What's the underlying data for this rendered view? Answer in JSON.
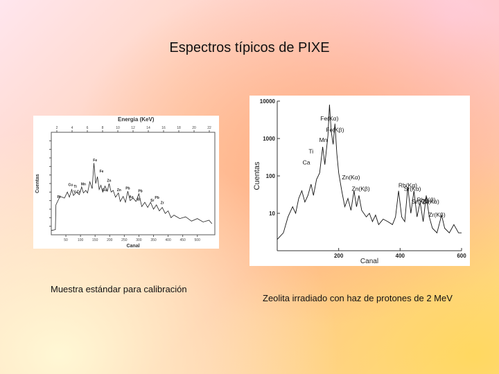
{
  "slide": {
    "title": "Espectros típicos de PIXE",
    "caption_left": "Muestra  estándar para calibración",
    "caption_right": "Zeolita irradiado con haz de protones de 2 MeV"
  },
  "chart_data": [
    {
      "type": "line",
      "title": "Energia  (KeV)",
      "xlabel": "Canal",
      "ylabel": "Cuentas",
      "top_ticks": [
        "2",
        "4",
        "6",
        "8",
        "10",
        "12",
        "14",
        "16",
        "18",
        "20",
        "22"
      ],
      "xticks": [
        "50",
        "100",
        "150",
        "200",
        "250",
        "300",
        "350",
        "400",
        "450",
        "500"
      ],
      "xlim": [
        0,
        560
      ],
      "ylim": [
        0,
        12
      ],
      "annotations": [
        {
          "label": "Fe",
          "x": 150,
          "y": 8.6
        },
        {
          "label": "Fe",
          "x": 172,
          "y": 7.3
        },
        {
          "label": "Cu",
          "x": 66,
          "y": 5.7
        },
        {
          "label": "Ti",
          "x": 82,
          "y": 5.5
        },
        {
          "label": "Mn",
          "x": 110,
          "y": 5.8
        },
        {
          "label": "V Cr",
          "x": 88,
          "y": 4.9
        },
        {
          "label": "Zn",
          "x": 198,
          "y": 6.2
        },
        {
          "label": "Cu",
          "x": 182,
          "y": 5.1
        },
        {
          "label": "Zn",
          "x": 232,
          "y": 5.1
        },
        {
          "label": "Pb",
          "x": 262,
          "y": 5.3
        },
        {
          "label": "Pb",
          "x": 305,
          "y": 5.0
        },
        {
          "label": "As",
          "x": 274,
          "y": 4.3
        },
        {
          "label": "Br",
          "x": 300,
          "y": 4.0
        },
        {
          "label": "Sr",
          "x": 346,
          "y": 3.9
        },
        {
          "label": "Pb",
          "x": 362,
          "y": 4.2
        },
        {
          "label": "Zr",
          "x": 380,
          "y": 3.6
        },
        {
          "label": "Pt",
          "x": 26,
          "y": 4.3
        }
      ],
      "series": [
        {
          "points": [
            [
              0,
              0.5
            ],
            [
              14,
              0.6
            ],
            [
              16,
              3.5
            ],
            [
              30,
              4.5
            ],
            [
              45,
              4.3
            ],
            [
              55,
              5.0
            ],
            [
              62,
              4.4
            ],
            [
              70,
              5.3
            ],
            [
              76,
              4.6
            ],
            [
              86,
              5.0
            ],
            [
              96,
              4.7
            ],
            [
              104,
              5.6
            ],
            [
              110,
              4.9
            ],
            [
              118,
              5.2
            ],
            [
              124,
              4.9
            ],
            [
              132,
              6.2
            ],
            [
              140,
              5.4
            ],
            [
              146,
              8.4
            ],
            [
              152,
              6.0
            ],
            [
              158,
              6.8
            ],
            [
              164,
              5.3
            ],
            [
              170,
              5.8
            ],
            [
              176,
              5.0
            ],
            [
              184,
              5.7
            ],
            [
              192,
              5.1
            ],
            [
              198,
              6.0
            ],
            [
              205,
              5.0
            ],
            [
              212,
              5.2
            ],
            [
              220,
              4.4
            ],
            [
              230,
              4.9
            ],
            [
              236,
              3.9
            ],
            [
              246,
              4.5
            ],
            [
              254,
              3.8
            ],
            [
              262,
              5.1
            ],
            [
              270,
              4.0
            ],
            [
              280,
              4.3
            ],
            [
              290,
              3.9
            ],
            [
              300,
              4.8
            ],
            [
              310,
              3.3
            ],
            [
              320,
              3.8
            ],
            [
              330,
              3.2
            ],
            [
              340,
              3.8
            ],
            [
              350,
              3.0
            ],
            [
              360,
              3.5
            ],
            [
              370,
              2.8
            ],
            [
              380,
              3.2
            ],
            [
              390,
              2.5
            ],
            [
              400,
              2.8
            ],
            [
              410,
              2.0
            ],
            [
              420,
              2.3
            ],
            [
              440,
              1.9
            ],
            [
              460,
              2.1
            ],
            [
              480,
              1.6
            ],
            [
              500,
              1.9
            ],
            [
              520,
              1.5
            ],
            [
              540,
              1.7
            ],
            [
              550,
              1.3
            ]
          ]
        }
      ]
    },
    {
      "type": "line",
      "xlabel": "Canal",
      "ylabel": "Cuentas",
      "xticks": [
        "200",
        "400",
        "600"
      ],
      "yticks": [
        "10",
        "100",
        "1000",
        "10000"
      ],
      "xlim": [
        0,
        600
      ],
      "ylim": [
        1,
        10000
      ],
      "log_y": true,
      "annotations": [
        {
          "label": "Fe(Kα)",
          "x": 170,
          "y": 3000
        },
        {
          "label": "Fe(Kβ)",
          "x": 188,
          "y": 1500
        },
        {
          "label": "Ti",
          "x": 110,
          "y": 400
        },
        {
          "label": "Ca",
          "x": 95,
          "y": 200
        },
        {
          "label": "Mn",
          "x": 150,
          "y": 800
        },
        {
          "label": "Rb(Kα)",
          "x": 425,
          "y": 50
        },
        {
          "label": "Rb(Kβ)",
          "x": 485,
          "y": 20
        },
        {
          "label": "Zn(Kα)",
          "x": 240,
          "y": 80
        },
        {
          "label": "Sr(Kα)",
          "x": 440,
          "y": 40
        },
        {
          "label": "Sr(Kβ)",
          "x": 465,
          "y": 18
        },
        {
          "label": "Zr(Kα)",
          "x": 500,
          "y": 18
        },
        {
          "label": "Zn(Kβ)",
          "x": 272,
          "y": 40
        },
        {
          "label": "Zr(Kβ)",
          "x": 520,
          "y": 8
        }
      ],
      "series": [
        {
          "points": [
            [
              0,
              2
            ],
            [
              20,
              3
            ],
            [
              35,
              8
            ],
            [
              50,
              15
            ],
            [
              60,
              10
            ],
            [
              70,
              25
            ],
            [
              80,
              40
            ],
            [
              90,
              20
            ],
            [
              100,
              30
            ],
            [
              110,
              60
            ],
            [
              118,
              30
            ],
            [
              128,
              80
            ],
            [
              138,
              120
            ],
            [
              148,
              600
            ],
            [
              155,
              200
            ],
            [
              165,
              1200
            ],
            [
              170,
              8000
            ],
            [
              176,
              1500
            ],
            [
              182,
              700
            ],
            [
              188,
              2500
            ],
            [
              194,
              400
            ],
            [
              200,
              120
            ],
            [
              210,
              40
            ],
            [
              220,
              15
            ],
            [
              230,
              25
            ],
            [
              240,
              12
            ],
            [
              250,
              40
            ],
            [
              258,
              15
            ],
            [
              266,
              30
            ],
            [
              275,
              12
            ],
            [
              290,
              8
            ],
            [
              300,
              10
            ],
            [
              310,
              6
            ],
            [
              320,
              9
            ],
            [
              330,
              5
            ],
            [
              345,
              7
            ],
            [
              360,
              6
            ],
            [
              375,
              5
            ],
            [
              385,
              8
            ],
            [
              395,
              40
            ],
            [
              405,
              8
            ],
            [
              415,
              6
            ],
            [
              425,
              50
            ],
            [
              435,
              10
            ],
            [
              445,
              40
            ],
            [
              455,
              8
            ],
            [
              465,
              20
            ],
            [
              475,
              6
            ],
            [
              485,
              30
            ],
            [
              495,
              8
            ],
            [
              505,
              4
            ],
            [
              520,
              3
            ],
            [
              535,
              9
            ],
            [
              545,
              4
            ],
            [
              560,
              3
            ],
            [
              575,
              5
            ],
            [
              590,
              3
            ],
            [
              600,
              3
            ]
          ]
        }
      ]
    }
  ]
}
